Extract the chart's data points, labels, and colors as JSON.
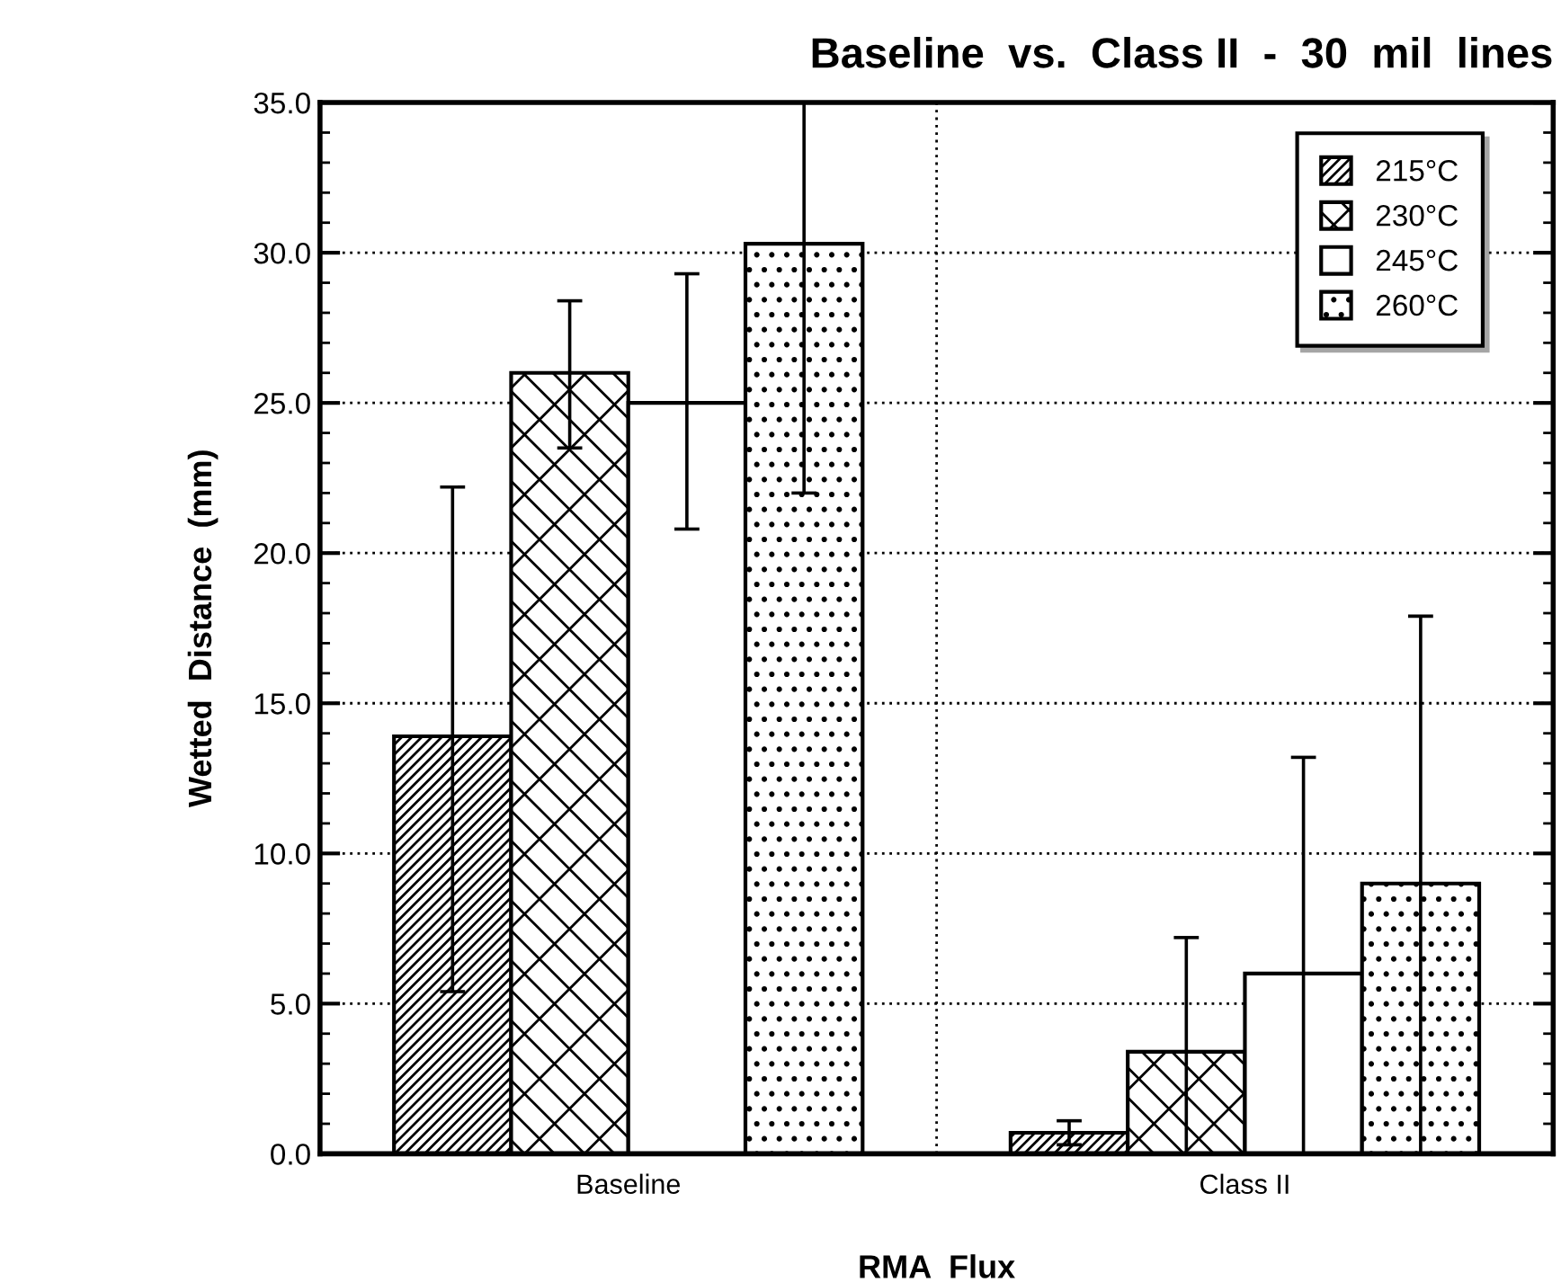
{
  "chart_data": {
    "type": "bar",
    "title": "Baseline  vs.  Class II  -  30  mil  lines",
    "xlabel": "RMA  Flux",
    "ylabel": "Wetted  Distance  (mm)",
    "categories": [
      "Baseline",
      "Class II"
    ],
    "series": [
      {
        "name": "215°C",
        "color": "#000000",
        "values": [
          13.9,
          0.7
        ],
        "errors": [
          [
            5.4,
            22.2
          ],
          [
            0.3,
            1.1
          ]
        ]
      },
      {
        "name": "230°C",
        "color": "#000000",
        "values": [
          26.0,
          3.4
        ],
        "errors": [
          [
            23.5,
            28.4
          ],
          [
            0.0,
            7.2
          ]
        ]
      },
      {
        "name": "245°C",
        "color": "#000000",
        "values": [
          25.0,
          6.0
        ],
        "errors": [
          [
            20.8,
            29.3
          ],
          [
            0.0,
            13.2
          ]
        ]
      },
      {
        "name": "260°C",
        "color": "#000000",
        "values": [
          30.3,
          9.0
        ],
        "errors": [
          [
            22.0,
            35.0
          ],
          [
            0.0,
            17.9
          ]
        ]
      }
    ],
    "ylim": [
      0,
      35
    ],
    "yticks": [
      {
        "value": 0,
        "label": "0.0"
      },
      {
        "value": 5,
        "label": "5.0"
      },
      {
        "value": 10,
        "label": "10.0"
      },
      {
        "value": 15,
        "label": "15.0"
      },
      {
        "value": 20,
        "label": "20.0"
      },
      {
        "value": 25,
        "label": "25.0"
      },
      {
        "value": 30,
        "label": "30.0"
      },
      {
        "value": 35,
        "label": "35.0"
      }
    ],
    "grid": true,
    "legend": "top right"
  }
}
